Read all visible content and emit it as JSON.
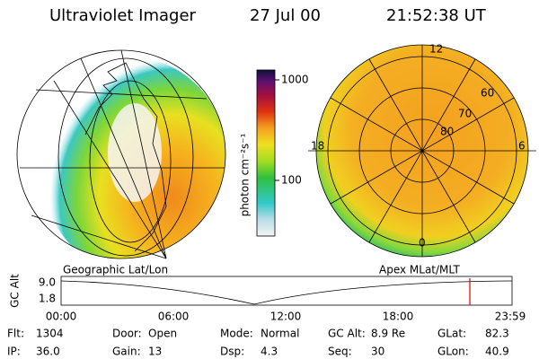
{
  "header": {
    "title": "Ultraviolet Imager",
    "date": "27 Jul 00",
    "time": "21:52:38 UT"
  },
  "colorbar": {
    "label": "photon cm⁻²s⁻¹",
    "ticks": [
      "1000",
      "100"
    ]
  },
  "maps": [
    {
      "label": "Geographic Lat/Lon"
    },
    {
      "label": "Apex MLat/MLT",
      "mlt": [
        "12",
        "18",
        "6",
        "0"
      ],
      "mlat": [
        "60",
        "70",
        "80"
      ]
    }
  ],
  "timeline": {
    "ylabel": "GC Alt",
    "yticks": [
      "9.0",
      "1.8"
    ],
    "xticks": [
      "00:00",
      "06:00",
      "12:00",
      "18:00",
      "23:59"
    ]
  },
  "status": {
    "rows": [
      [
        {
          "label": "Flt:",
          "value": "1304"
        },
        {
          "label": "Door:",
          "value": "Open"
        },
        {
          "label": "Mode:",
          "value": "Normal"
        },
        {
          "label": "GC Alt:",
          "value": "8.9 Re"
        },
        {
          "label": "GLat:",
          "value": "82.3"
        }
      ],
      [
        {
          "label": "IP:",
          "value": "36.0"
        },
        {
          "label": "Gain:",
          "value": "13"
        },
        {
          "label": "Dsp:",
          "value": "4.3"
        },
        {
          "label": "Seq:",
          "value": "30"
        },
        {
          "label": "GLon:",
          "value": "40.9"
        }
      ]
    ]
  }
}
